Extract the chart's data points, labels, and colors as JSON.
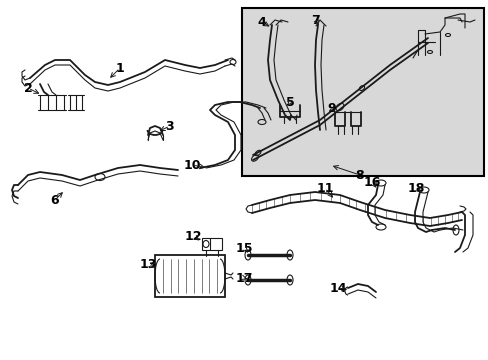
{
  "bg_color": "#ffffff",
  "line_color": "#1a1a1a",
  "inset_bg": "#d8d8d8",
  "inset_border": "#000000",
  "fontsize": 9,
  "fig_width": 4.89,
  "fig_height": 3.6,
  "dpi": 100,
  "lw_main": 1.3,
  "lw_thin": 0.8,
  "lw_thick": 2.5
}
